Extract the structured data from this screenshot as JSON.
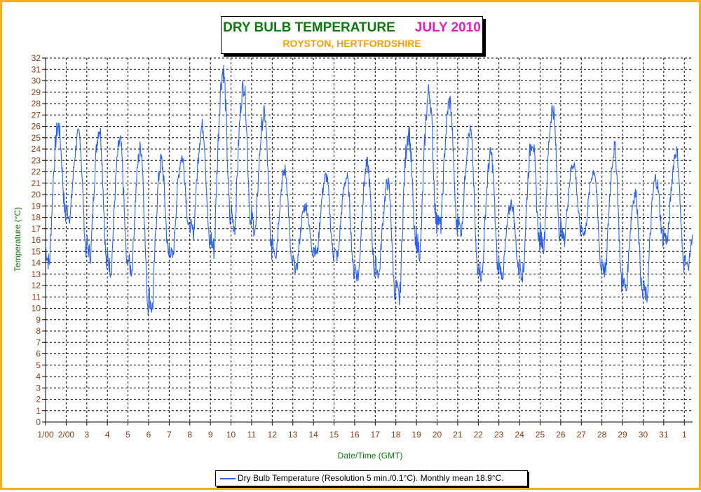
{
  "chart_data": {
    "type": "line",
    "title": "DRY BULB TEMPERATURE",
    "title_month": "JULY 2010",
    "subtitle": "ROYSTON, HERTFORDSHIRE",
    "xlabel": "Date/Time (GMT)",
    "ylabel": "Temperature (°C)",
    "ylim": [
      0,
      32
    ],
    "xlim": [
      0,
      31.4
    ],
    "y_ticks": [
      "0",
      "1",
      "2",
      "3",
      "4",
      "5",
      "6",
      "7",
      "8",
      "9",
      "10",
      "11",
      "12",
      "13",
      "14",
      "15",
      "16",
      "17",
      "18",
      "19",
      "20",
      "21",
      "22",
      "23",
      "24",
      "25",
      "26",
      "27",
      "28",
      "29",
      "30",
      "31",
      "32"
    ],
    "x_ticks": [
      "1/00",
      "2/00",
      "3",
      "4",
      "5",
      "6",
      "7",
      "8",
      "9",
      "10",
      "11",
      "12",
      "13",
      "14",
      "15",
      "16",
      "17",
      "18",
      "19",
      "20",
      "21",
      "22",
      "23",
      "24",
      "25",
      "26",
      "27",
      "28",
      "29",
      "30",
      "31",
      "1"
    ],
    "grid": true,
    "legend_placement": "bottom",
    "series": [
      {
        "name": "Dry Bulb Temperature (Resolution 5 min./0.1°C). Monthly mean 18.9°C.",
        "color": "#2d62f0",
        "days_min": [
          14.0,
          18.0,
          14.7,
          13.4,
          13.3,
          10.0,
          14.5,
          16.7,
          15.2,
          17.2,
          16.8,
          14.8,
          13.4,
          14.9,
          14.5,
          12.8,
          13.0,
          10.8,
          15.0,
          17.2,
          16.8,
          12.8,
          12.9,
          13.1,
          15.6,
          16.0,
          16.6,
          13.2,
          11.6,
          11.0,
          16.0,
          13.6
        ],
        "days_max": [
          26.0,
          25.3,
          25.8,
          24.6,
          24.1,
          22.9,
          23.3,
          26.0,
          30.9,
          29.6,
          27.1,
          22.1,
          19.0,
          21.6,
          21.5,
          22.6,
          21.0,
          25.5,
          29.0,
          28.2,
          25.5,
          23.5,
          19.2,
          24.8,
          27.6,
          22.8,
          22.1,
          24.0,
          20.1,
          21.4,
          23.8,
          18.0
        ]
      }
    ]
  },
  "legend": {
    "text": "Dry Bulb Temperature (Resolution 5 min./0.1°C). Monthly mean 18.9°C."
  }
}
